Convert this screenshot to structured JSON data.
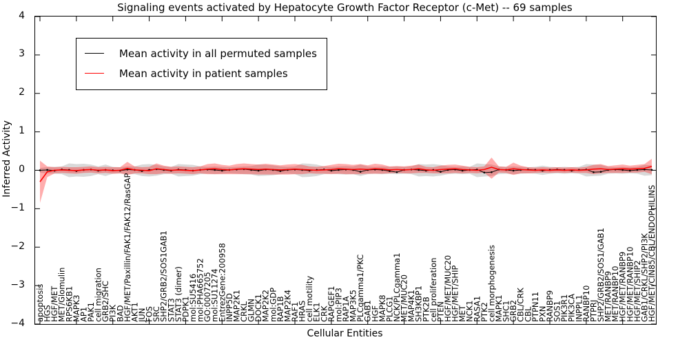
{
  "title": "Signaling events activated by Hepatocyte Growth Factor Receptor (c-Met) -- 69 samples",
  "legend": {
    "items": [
      {
        "label": "Mean activity in all permuted samples",
        "color": "#000000"
      },
      {
        "label": "Mean activity in patient samples",
        "color": "#ff0000"
      }
    ]
  },
  "colors": {
    "permuted_line": "#000000",
    "patient_line": "#ff0000",
    "permuted_band": "rgba(128,128,128,0.30)",
    "patient_band": "rgba(255,0,0,0.32)",
    "frame": "#000000"
  },
  "chart_data": {
    "type": "line",
    "title": "Signaling events activated by Hepatocyte Growth Factor Receptor (c-Met) -- 69 samples",
    "xlabel": "Cellular Entities",
    "ylabel": "Inferred Activity",
    "ylim": [
      -4,
      4
    ],
    "yticks": [
      4,
      3,
      2,
      1,
      0,
      -1,
      -2,
      -3,
      -4
    ],
    "ytick_labels": [
      "4",
      "3",
      "2",
      "1",
      "0",
      "−1",
      "−2",
      "−3",
      "−4"
    ],
    "x_major_tick_every": 5,
    "grid": false,
    "legend_position": "upper left",
    "categories": [
      "apoptosis",
      "HGS",
      "HGF/MET",
      "MET/Glomulin",
      "RPS6KB1",
      "MAPK3",
      "AP1",
      "PAK1",
      "cell migration",
      "GRB2/SHC",
      "PI3K",
      "BAD",
      "HGF/MET/Paxillin/FAK1/FAK12/RasGAP",
      "AKT1",
      "JUN",
      "FOS",
      "SRC",
      "SHP2/GRB2/SOS1GAB1",
      "STAT3",
      "STAT3 (dimer)",
      "PDPK1",
      "mol:SU5416",
      "mol:PHA665752",
      "GO:0007205",
      "mol:SU11274",
      "EntrezGene:200958",
      "INPP5D",
      "MAP2K1",
      "CRKL",
      "GLMN",
      "DOCK1",
      "MAP2K2",
      "mol:GDP",
      "RAP1B",
      "MAP2K4",
      "RAF1",
      "HRAS",
      "cell motility",
      "ELK1",
      "CRK",
      "RAPGEF1",
      "mol:PIP3",
      "RAP1A",
      "MAP3K5",
      "PLCgamma1/PKC",
      "GAB1",
      "HGF",
      "MAPK8",
      "PLCG1",
      "NCK/PLCgamma1",
      "MET/MUC20",
      "MAP4K1",
      "SH3KBP1",
      "PTK2B",
      "cell proliferation",
      "PTEN",
      "HGF/MET/MUC20",
      "HGF/MET/SHIP",
      "MET",
      "NCK1",
      "RASA1",
      "PTK2",
      "cell morphogenesis",
      "MAPK1",
      "SHC1",
      "GRB2",
      "CBL/CRK",
      "CBL",
      "PTPN11",
      "PXN",
      "RANBP9",
      "SOS1",
      "PIK3R1",
      "PIK3CA",
      "INPPL1",
      "RANBP10",
      "PTPRJ",
      "SHP2/GRB2/SOS1/GAB1",
      "MET/RANBP9",
      "MET/RANBP10",
      "HGF/MET/RANBP9",
      "HGF/MET/RANBP10",
      "HGF/MET/SHIP2",
      "GAB1/CRKL/SHP2/PI3K",
      "HGF/MET/CIN85/CBL/ENDOPHILINS"
    ],
    "series": [
      {
        "name": "Mean activity in all permuted samples",
        "color": "#000000",
        "style": "line_with_dot_markers",
        "values": [
          0.0,
          0.01,
          -0.01,
          0.02,
          0.01,
          -0.02,
          0.01,
          0.02,
          -0.01,
          0.01,
          0.0,
          -0.01,
          0.02,
          0.01,
          -0.02,
          0.01,
          0.03,
          0.01,
          -0.01,
          0.02,
          0.01,
          -0.01,
          0.01,
          0.02,
          0.01,
          -0.01,
          0.01,
          0.02,
          0.03,
          0.01,
          -0.01,
          0.02,
          0.01,
          -0.02,
          0.01,
          0.02,
          0.01,
          -0.01,
          0.01,
          0.02,
          -0.01,
          0.01,
          0.02,
          0.01,
          -0.04,
          0.01,
          0.02,
          0.01,
          -0.02,
          -0.05,
          0.01,
          0.02,
          0.01,
          -0.01,
          0.01,
          -0.04,
          0.01,
          0.02,
          -0.01,
          0.01,
          0.02,
          -0.06,
          -0.05,
          0.02,
          0.01,
          -0.01,
          0.01,
          0.02,
          0.01,
          -0.01,
          0.01,
          0.02,
          0.01,
          -0.01,
          0.01,
          0.02,
          -0.05,
          -0.04,
          0.01,
          0.02,
          0.01,
          -0.01,
          0.01,
          0.02,
          0.01
        ]
      },
      {
        "name": "Mean activity in patient samples",
        "color": "#ff0000",
        "style": "line",
        "values": [
          -0.3,
          -0.04,
          0.0,
          0.01,
          0.0,
          -0.01,
          0.01,
          0.02,
          0.0,
          0.01,
          -0.01,
          0.0,
          0.05,
          0.01,
          0.0,
          -0.01,
          0.04,
          0.02,
          0.0,
          0.01,
          0.0,
          -0.01,
          0.01,
          0.03,
          0.04,
          0.02,
          0.01,
          0.03,
          0.04,
          0.03,
          0.02,
          0.03,
          0.02,
          0.01,
          0.02,
          0.03,
          0.02,
          0.01,
          0.0,
          0.01,
          0.02,
          0.04,
          0.03,
          0.02,
          0.03,
          0.02,
          0.04,
          0.03,
          0.01,
          0.02,
          0.01,
          0.02,
          0.04,
          0.01,
          0.0,
          0.02,
          0.03,
          0.04,
          0.02,
          0.01,
          0.0,
          0.02,
          0.08,
          0.02,
          0.01,
          0.04,
          0.02,
          0.01,
          0.0,
          0.01,
          0.0,
          0.01,
          0.0,
          0.01,
          0.0,
          0.01,
          0.03,
          0.04,
          0.02,
          0.03,
          0.04,
          0.03,
          0.04,
          0.05,
          0.1
        ]
      }
    ],
    "bands": [
      {
        "name": "patient samples band",
        "color": "rgba(255,0,0,0.32)",
        "upper": [
          0.25,
          0.1,
          0.08,
          0.09,
          0.08,
          0.08,
          0.09,
          0.1,
          0.08,
          0.09,
          0.08,
          0.08,
          0.22,
          0.1,
          0.08,
          0.09,
          0.18,
          0.12,
          0.09,
          0.1,
          0.09,
          0.08,
          0.1,
          0.16,
          0.18,
          0.14,
          0.12,
          0.16,
          0.18,
          0.16,
          0.15,
          0.17,
          0.15,
          0.13,
          0.15,
          0.16,
          0.14,
          0.1,
          0.09,
          0.11,
          0.14,
          0.17,
          0.16,
          0.14,
          0.16,
          0.13,
          0.17,
          0.15,
          0.1,
          0.11,
          0.1,
          0.12,
          0.15,
          0.09,
          0.08,
          0.12,
          0.14,
          0.15,
          0.12,
          0.09,
          0.08,
          0.1,
          0.33,
          0.1,
          0.09,
          0.2,
          0.12,
          0.08,
          0.07,
          0.08,
          0.07,
          0.08,
          0.07,
          0.08,
          0.07,
          0.09,
          0.14,
          0.16,
          0.11,
          0.13,
          0.15,
          0.12,
          0.14,
          0.16,
          0.3
        ],
        "lower": [
          -0.85,
          -0.18,
          -0.08,
          -0.07,
          -0.08,
          -0.09,
          -0.07,
          -0.06,
          -0.08,
          -0.07,
          -0.09,
          -0.08,
          -0.12,
          -0.08,
          -0.08,
          -0.1,
          -0.1,
          -0.08,
          -0.09,
          -0.08,
          -0.09,
          -0.1,
          -0.08,
          -0.1,
          -0.1,
          -0.1,
          -0.1,
          -0.1,
          -0.1,
          -0.1,
          -0.11,
          -0.11,
          -0.11,
          -0.11,
          -0.11,
          -0.1,
          -0.1,
          -0.08,
          -0.09,
          -0.09,
          -0.1,
          -0.09,
          -0.1,
          -0.1,
          -0.1,
          -0.09,
          -0.09,
          -0.09,
          -0.08,
          -0.07,
          -0.08,
          -0.08,
          -0.07,
          -0.07,
          -0.08,
          -0.08,
          -0.08,
          -0.07,
          -0.08,
          -0.07,
          -0.08,
          -0.06,
          -0.22,
          -0.06,
          -0.07,
          -0.12,
          -0.08,
          -0.08,
          -0.07,
          -0.06,
          -0.07,
          -0.06,
          -0.07,
          -0.06,
          -0.07,
          -0.07,
          -0.1,
          -0.08,
          -0.07,
          -0.07,
          -0.07,
          -0.06,
          -0.06,
          -0.04,
          -0.1
        ]
      },
      {
        "name": "permuted samples band",
        "color": "rgba(128,128,128,0.30)",
        "upper": [
          0.06,
          0.08,
          0.09,
          0.1,
          0.18,
          0.16,
          0.17,
          0.15,
          0.1,
          0.15,
          0.09,
          0.08,
          0.1,
          0.1,
          0.15,
          0.16,
          0.14,
          0.1,
          0.09,
          0.16,
          0.15,
          0.14,
          0.1,
          0.09,
          0.1,
          0.09,
          0.08,
          0.09,
          0.1,
          0.11,
          0.15,
          0.14,
          0.13,
          0.1,
          0.09,
          0.1,
          0.18,
          0.17,
          0.15,
          0.1,
          0.09,
          0.1,
          0.11,
          0.1,
          0.15,
          0.1,
          0.09,
          0.1,
          0.09,
          0.1,
          0.09,
          0.1,
          0.16,
          0.15,
          0.16,
          0.14,
          0.1,
          0.09,
          0.1,
          0.09,
          0.18,
          0.16,
          0.15,
          0.1,
          0.09,
          0.1,
          0.09,
          0.08,
          0.09,
          0.12,
          0.09,
          0.08,
          0.09,
          0.08,
          0.09,
          0.16,
          0.15,
          0.14,
          0.09,
          0.08,
          0.09,
          0.08,
          0.09,
          0.14,
          0.13
        ],
        "lower": [
          -0.06,
          -0.08,
          -0.09,
          -0.1,
          -0.18,
          -0.16,
          -0.17,
          -0.15,
          -0.1,
          -0.15,
          -0.09,
          -0.08,
          -0.1,
          -0.1,
          -0.15,
          -0.16,
          -0.14,
          -0.1,
          -0.09,
          -0.16,
          -0.15,
          -0.14,
          -0.1,
          -0.09,
          -0.1,
          -0.09,
          -0.08,
          -0.09,
          -0.1,
          -0.11,
          -0.15,
          -0.14,
          -0.13,
          -0.1,
          -0.09,
          -0.1,
          -0.18,
          -0.17,
          -0.15,
          -0.1,
          -0.09,
          -0.1,
          -0.11,
          -0.1,
          -0.15,
          -0.1,
          -0.09,
          -0.1,
          -0.09,
          -0.1,
          -0.09,
          -0.1,
          -0.16,
          -0.15,
          -0.16,
          -0.14,
          -0.1,
          -0.09,
          -0.1,
          -0.09,
          -0.18,
          -0.16,
          -0.15,
          -0.1,
          -0.09,
          -0.1,
          -0.09,
          -0.08,
          -0.09,
          -0.12,
          -0.09,
          -0.08,
          -0.09,
          -0.08,
          -0.09,
          -0.16,
          -0.15,
          -0.14,
          -0.09,
          -0.08,
          -0.09,
          -0.08,
          -0.09,
          -0.14,
          -0.13
        ]
      }
    ]
  }
}
